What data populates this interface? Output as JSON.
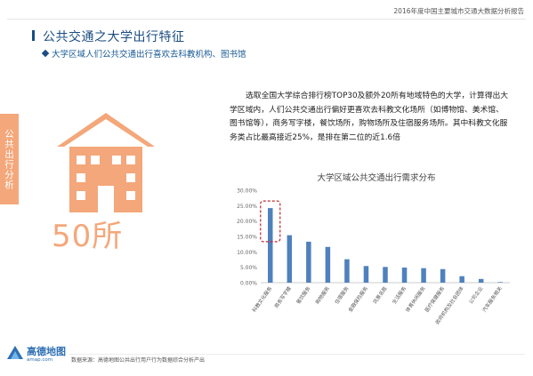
{
  "header": {
    "report_title": "2016年度中国主要城市交通大数据分析报告"
  },
  "section": {
    "title": "公共交通之大学出行特征",
    "subtitle": "大学区域人们公共交通出行喜欢去科教机构、图书馆"
  },
  "side_tab": {
    "label": "公共出行分析",
    "color": "#f4a77a"
  },
  "highlight": {
    "count": "50所",
    "icon": "school-building-icon",
    "color": "#f4a77a"
  },
  "paragraph": "选取全国大学综合排行榜TOP30及额外20所有地域特色的大学，计算得出大学区域内，人们公共交通出行偏好更喜欢去科教文化场所（如博物馆、美术馆、图书馆等），商务写字楼，餐饮场所，购物场所及住宿服务场所。其中科教文化服务类占比最高接近25%，是排在第二位的近1.6倍",
  "footer": {
    "logo_text": "高德地图",
    "logo_url": "amap.com",
    "note": "数据来源：高德地图公共出行用户行为数据综合分析产出"
  },
  "colors": {
    "accent": "#1a4d80",
    "bar": "#4f81bd",
    "highlight_box": "#c0282d"
  },
  "chart_data": {
    "type": "bar",
    "title": "大学区域公共交通出行需求分布",
    "categories": [
      "科教文化服务",
      "商务写字楼",
      "餐饮服务",
      "购物服务",
      "住宿服务",
      "金融保险服务",
      "风景名胜",
      "生活服务",
      "体育休闲服务",
      "医疗保健服务",
      "政府机构及社会团体",
      "公司企业",
      "汽车服务相关"
    ],
    "values": [
      24.2,
      15.4,
      13.3,
      11.6,
      7.6,
      5.4,
      5.1,
      4.9,
      4.7,
      4.4,
      2.1,
      1.2,
      0.2
    ],
    "ylim": [
      0,
      30
    ],
    "yticks": [
      "0.00%",
      "5.00%",
      "10.00%",
      "15.00%",
      "20.00%",
      "25.00%",
      "30.00%"
    ],
    "grid": false,
    "highlighted_category": "科教文化服务"
  }
}
